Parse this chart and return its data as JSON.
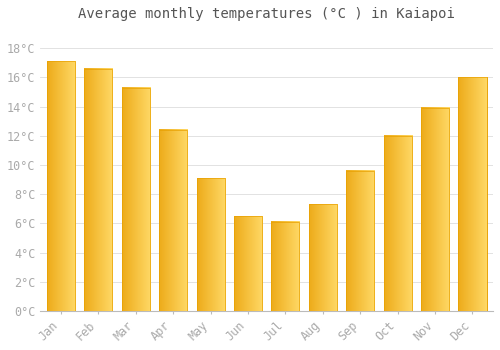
{
  "title": "Average monthly temperatures (°C ) in Kaiapoi",
  "months": [
    "Jan",
    "Feb",
    "Mar",
    "Apr",
    "May",
    "Jun",
    "Jul",
    "Aug",
    "Sep",
    "Oct",
    "Nov",
    "Dec"
  ],
  "values": [
    17.1,
    16.6,
    15.3,
    12.4,
    9.1,
    6.5,
    6.1,
    7.3,
    9.6,
    12.0,
    13.9,
    16.0
  ],
  "bar_color_left": "#F5A800",
  "bar_color_right": "#FFD060",
  "bar_color_face": "#FFBB20",
  "bar_color_edge": "#E8A000",
  "background_color": "#FFFFFF",
  "grid_color": "#DDDDDD",
  "ytick_labels": [
    "0°C",
    "2°C",
    "4°C",
    "6°C",
    "8°C",
    "10°C",
    "12°C",
    "14°C",
    "16°C",
    "18°C"
  ],
  "ytick_values": [
    0,
    2,
    4,
    6,
    8,
    10,
    12,
    14,
    16,
    18
  ],
  "ylim": [
    0,
    19.5
  ],
  "title_fontsize": 10,
  "tick_fontsize": 8.5,
  "tick_color": "#AAAAAA",
  "title_color": "#555555"
}
